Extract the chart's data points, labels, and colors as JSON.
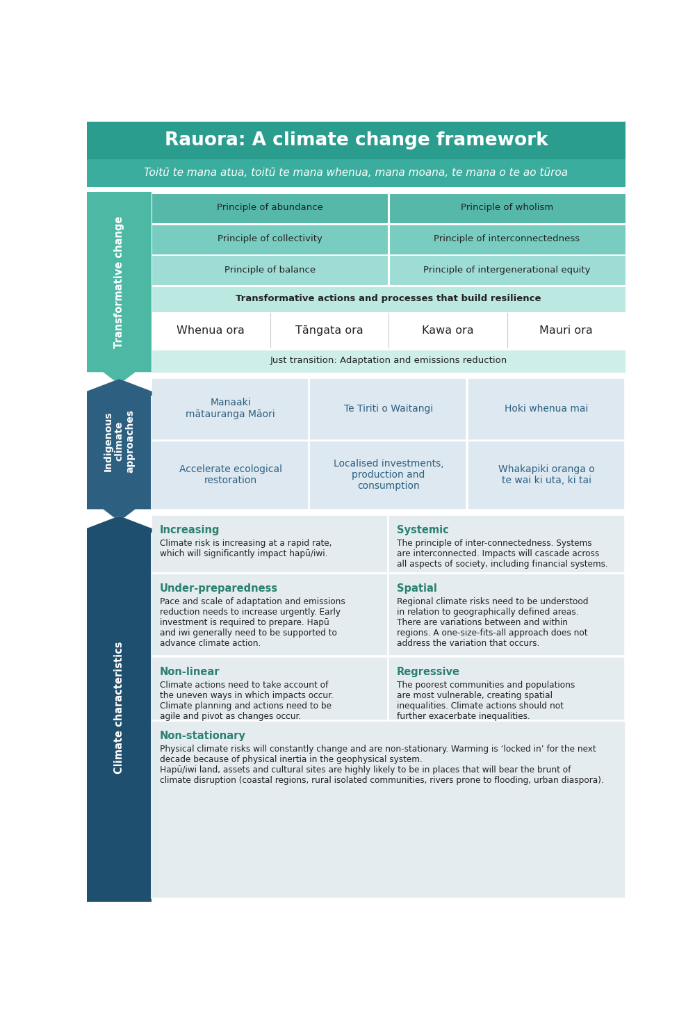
{
  "title": "Rauora: A climate change framework",
  "subtitle": "Toitū te mana atua, toitū te mana whenua, mana moana, te mana o te ao tūroa",
  "title_bg": "#2b9d8f",
  "subtitle_bg": "#3aad9e",
  "section1_label": "Transformative change",
  "section1_label_bg": "#4db8a4",
  "section2_label": "Indigenous\nclimate\napproaches",
  "section2_label_bg": "#2d6080",
  "section3_label": "Climate characteristics",
  "section3_label_bg": "#1e4f6e",
  "tc_bg_white": "#f5f5f5",
  "tc_cell_dark": "#55b8a8",
  "tc_cell_mid": "#78ccc0",
  "tc_cell_light": "#9eddd5",
  "tc_cell_lighter": "#bce8e2",
  "tc_cell_lightest": "#ceeee9",
  "tc_principles": [
    [
      "Principle of abundance",
      "Principle of wholism"
    ],
    [
      "Principle of collectivity",
      "Principle of interconnectedness"
    ],
    [
      "Principle of balance",
      "Principle of intergenerational equity"
    ]
  ],
  "tc_transformative": "Transformative actions and processes that build resilience",
  "tc_ora": [
    "Whenua ora",
    "Tāngata ora",
    "Kawa ora",
    "Mauri ora"
  ],
  "tc_just": "Just transition: Adaptation and emissions reduction",
  "ic_cell_bg": "#dde8f0",
  "ic_row1": [
    "Manaaki\nmātauranga Māori",
    "Te Tiriti o Waitangi",
    "Hoki whenua mai"
  ],
  "ic_row2": [
    "Accelerate ecological\nrestoration",
    "Localised investments,\nproduction and\nconsumption",
    "Whakapiki oranga o\nte wai ki uta, ki tai"
  ],
  "ic_text_color": "#2d6080",
  "cc_cell_bg": "#e5ecf0",
  "cc_items": [
    {
      "title": "Increasing",
      "body": "Climate risk is increasing at a rapid rate,\nwhich will significantly impact hapū/iwi."
    },
    {
      "title": "Systemic",
      "body": "The principle of inter-connectedness. Systems\nare interconnected. Impacts will cascade across\nall aspects of society, including financial systems."
    },
    {
      "title": "Under-preparedness",
      "body": "Pace and scale of adaptation and emissions\nreduction needs to increase urgently. Early\ninvestment is required to prepare. Hapū\nand iwi generally need to be supported to\nadvance climate action."
    },
    {
      "title": "Spatial",
      "body": "Regional climate risks need to be understood\nin relation to geographically defined areas.\nThere are variations between and within\nregions. A one-size-fits-all approach does not\naddress the variation that occurs."
    },
    {
      "title": "Non-linear",
      "body": "Climate actions need to take account of\nthe uneven ways in which impacts occur.\nClimate planning and actions need to be\nagile and pivot as changes occur."
    },
    {
      "title": "Regressive",
      "body": "The poorest communities and populations\nare most vulnerable, creating spatial\ninequalities. Climate actions should not\nfurther exacerbate inequalities."
    }
  ],
  "cc_nonstationary_title": "Non-stationary",
  "cc_nonstationary_body": "Physical climate risks will constantly change and are non-stationary. Warming is ‘locked in’ for the next\ndecade because of physical inertia in the geophysical system.\nHapū/iwi land, assets and cultural sites are highly likely to be in places that will bear the brunt of\nclimate disruption (coastal regions, rural isolated communities, rivers prone to flooding, urban diaspora).",
  "cc_title_color": "#2b8070",
  "white": "#ffffff",
  "dark_text": "#222222",
  "border_white": "#ffffff"
}
